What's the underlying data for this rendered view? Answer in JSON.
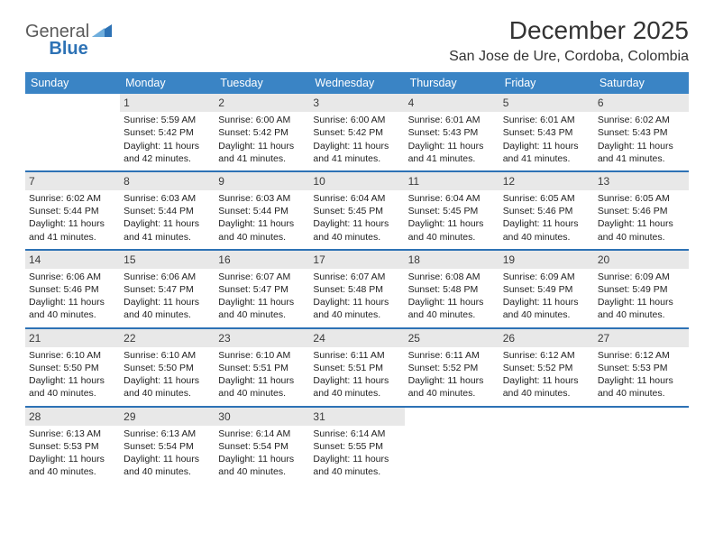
{
  "logo": {
    "text1": "General",
    "text2": "Blue"
  },
  "title": "December 2025",
  "location": "San Jose de Ure, Cordoba, Colombia",
  "colors": {
    "header_bg": "#3a84c5",
    "row_divider": "#2d72b5",
    "daynum_bg": "#e8e8e8",
    "text": "#222222",
    "logo_gray": "#5a5a5a",
    "logo_blue": "#2d72b5"
  },
  "day_names": [
    "Sunday",
    "Monday",
    "Tuesday",
    "Wednesday",
    "Thursday",
    "Friday",
    "Saturday"
  ],
  "weeks": [
    [
      {
        "day": "",
        "lines": []
      },
      {
        "day": "1",
        "lines": [
          "Sunrise: 5:59 AM",
          "Sunset: 5:42 PM",
          "Daylight: 11 hours and 42 minutes."
        ]
      },
      {
        "day": "2",
        "lines": [
          "Sunrise: 6:00 AM",
          "Sunset: 5:42 PM",
          "Daylight: 11 hours and 41 minutes."
        ]
      },
      {
        "day": "3",
        "lines": [
          "Sunrise: 6:00 AM",
          "Sunset: 5:42 PM",
          "Daylight: 11 hours and 41 minutes."
        ]
      },
      {
        "day": "4",
        "lines": [
          "Sunrise: 6:01 AM",
          "Sunset: 5:43 PM",
          "Daylight: 11 hours and 41 minutes."
        ]
      },
      {
        "day": "5",
        "lines": [
          "Sunrise: 6:01 AM",
          "Sunset: 5:43 PM",
          "Daylight: 11 hours and 41 minutes."
        ]
      },
      {
        "day": "6",
        "lines": [
          "Sunrise: 6:02 AM",
          "Sunset: 5:43 PM",
          "Daylight: 11 hours and 41 minutes."
        ]
      }
    ],
    [
      {
        "day": "7",
        "lines": [
          "Sunrise: 6:02 AM",
          "Sunset: 5:44 PM",
          "Daylight: 11 hours and 41 minutes."
        ]
      },
      {
        "day": "8",
        "lines": [
          "Sunrise: 6:03 AM",
          "Sunset: 5:44 PM",
          "Daylight: 11 hours and 41 minutes."
        ]
      },
      {
        "day": "9",
        "lines": [
          "Sunrise: 6:03 AM",
          "Sunset: 5:44 PM",
          "Daylight: 11 hours and 40 minutes."
        ]
      },
      {
        "day": "10",
        "lines": [
          "Sunrise: 6:04 AM",
          "Sunset: 5:45 PM",
          "Daylight: 11 hours and 40 minutes."
        ]
      },
      {
        "day": "11",
        "lines": [
          "Sunrise: 6:04 AM",
          "Sunset: 5:45 PM",
          "Daylight: 11 hours and 40 minutes."
        ]
      },
      {
        "day": "12",
        "lines": [
          "Sunrise: 6:05 AM",
          "Sunset: 5:46 PM",
          "Daylight: 11 hours and 40 minutes."
        ]
      },
      {
        "day": "13",
        "lines": [
          "Sunrise: 6:05 AM",
          "Sunset: 5:46 PM",
          "Daylight: 11 hours and 40 minutes."
        ]
      }
    ],
    [
      {
        "day": "14",
        "lines": [
          "Sunrise: 6:06 AM",
          "Sunset: 5:46 PM",
          "Daylight: 11 hours and 40 minutes."
        ]
      },
      {
        "day": "15",
        "lines": [
          "Sunrise: 6:06 AM",
          "Sunset: 5:47 PM",
          "Daylight: 11 hours and 40 minutes."
        ]
      },
      {
        "day": "16",
        "lines": [
          "Sunrise: 6:07 AM",
          "Sunset: 5:47 PM",
          "Daylight: 11 hours and 40 minutes."
        ]
      },
      {
        "day": "17",
        "lines": [
          "Sunrise: 6:07 AM",
          "Sunset: 5:48 PM",
          "Daylight: 11 hours and 40 minutes."
        ]
      },
      {
        "day": "18",
        "lines": [
          "Sunrise: 6:08 AM",
          "Sunset: 5:48 PM",
          "Daylight: 11 hours and 40 minutes."
        ]
      },
      {
        "day": "19",
        "lines": [
          "Sunrise: 6:09 AM",
          "Sunset: 5:49 PM",
          "Daylight: 11 hours and 40 minutes."
        ]
      },
      {
        "day": "20",
        "lines": [
          "Sunrise: 6:09 AM",
          "Sunset: 5:49 PM",
          "Daylight: 11 hours and 40 minutes."
        ]
      }
    ],
    [
      {
        "day": "21",
        "lines": [
          "Sunrise: 6:10 AM",
          "Sunset: 5:50 PM",
          "Daylight: 11 hours and 40 minutes."
        ]
      },
      {
        "day": "22",
        "lines": [
          "Sunrise: 6:10 AM",
          "Sunset: 5:50 PM",
          "Daylight: 11 hours and 40 minutes."
        ]
      },
      {
        "day": "23",
        "lines": [
          "Sunrise: 6:10 AM",
          "Sunset: 5:51 PM",
          "Daylight: 11 hours and 40 minutes."
        ]
      },
      {
        "day": "24",
        "lines": [
          "Sunrise: 6:11 AM",
          "Sunset: 5:51 PM",
          "Daylight: 11 hours and 40 minutes."
        ]
      },
      {
        "day": "25",
        "lines": [
          "Sunrise: 6:11 AM",
          "Sunset: 5:52 PM",
          "Daylight: 11 hours and 40 minutes."
        ]
      },
      {
        "day": "26",
        "lines": [
          "Sunrise: 6:12 AM",
          "Sunset: 5:52 PM",
          "Daylight: 11 hours and 40 minutes."
        ]
      },
      {
        "day": "27",
        "lines": [
          "Sunrise: 6:12 AM",
          "Sunset: 5:53 PM",
          "Daylight: 11 hours and 40 minutes."
        ]
      }
    ],
    [
      {
        "day": "28",
        "lines": [
          "Sunrise: 6:13 AM",
          "Sunset: 5:53 PM",
          "Daylight: 11 hours and 40 minutes."
        ]
      },
      {
        "day": "29",
        "lines": [
          "Sunrise: 6:13 AM",
          "Sunset: 5:54 PM",
          "Daylight: 11 hours and 40 minutes."
        ]
      },
      {
        "day": "30",
        "lines": [
          "Sunrise: 6:14 AM",
          "Sunset: 5:54 PM",
          "Daylight: 11 hours and 40 minutes."
        ]
      },
      {
        "day": "31",
        "lines": [
          "Sunrise: 6:14 AM",
          "Sunset: 5:55 PM",
          "Daylight: 11 hours and 40 minutes."
        ]
      },
      {
        "day": "",
        "lines": []
      },
      {
        "day": "",
        "lines": []
      },
      {
        "day": "",
        "lines": []
      }
    ]
  ]
}
